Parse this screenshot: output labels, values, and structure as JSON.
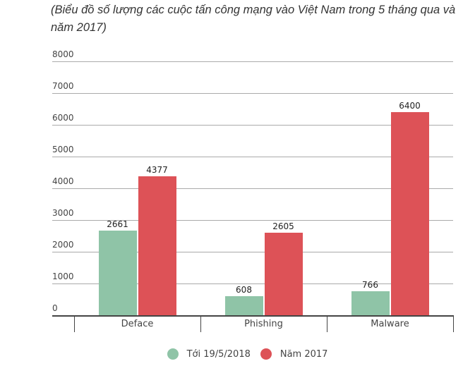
{
  "caption": "(Biểu đồ số lượng các cuộc tấn công mạng vào Việt Nam trong 5 tháng qua và năm 2017)",
  "colors": {
    "series1": "#8fc4a7",
    "series2": "#dd5257"
  },
  "chart_data": {
    "type": "bar",
    "title": "(Biểu đồ số lượng các cuộc tấn công mạng vào Việt Nam trong 5 tháng qua và năm 2017)",
    "categories": [
      "Deface",
      "Phishing",
      "Malware"
    ],
    "series": [
      {
        "name": "Tới 19/5/2018",
        "values": [
          2661,
          608,
          766
        ],
        "color": "#8fc4a7"
      },
      {
        "name": "Năm 2017",
        "values": [
          4377,
          2605,
          6400
        ],
        "color": "#dd5257"
      }
    ],
    "xlabel": "",
    "ylabel": "",
    "ylim": [
      0,
      8000
    ],
    "yticks": [
      0,
      1000,
      2000,
      3000,
      4000,
      5000,
      6000,
      7000,
      8000
    ],
    "grid": true,
    "legend_position": "bottom",
    "data_labels": true
  },
  "yticks": [
    "0",
    "1000",
    "2000",
    "3000",
    "4000",
    "5000",
    "6000",
    "7000",
    "8000"
  ],
  "categories": [
    "Deface",
    "Phishing",
    "Malware"
  ],
  "labels": {
    "s1": [
      "2661",
      "608",
      "766"
    ],
    "s2": [
      "4377",
      "2605",
      "6400"
    ]
  },
  "legend": [
    {
      "label": "Tới 19/5/2018"
    },
    {
      "label": "Năm 2017"
    }
  ]
}
